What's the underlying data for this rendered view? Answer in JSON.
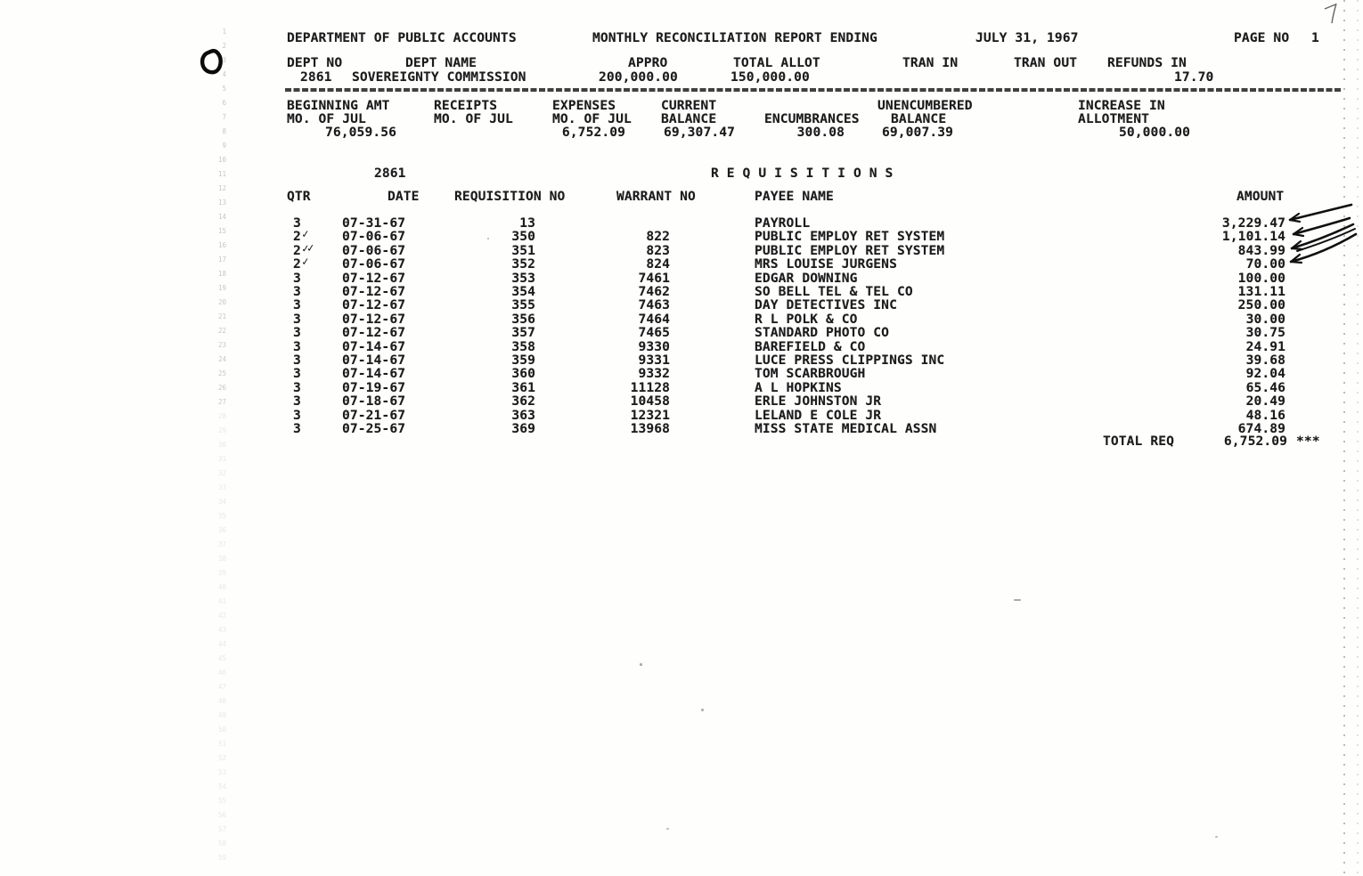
{
  "header": {
    "department": "DEPARTMENT OF PUBLIC ACCOUNTS",
    "report_title": "MONTHLY RECONCILIATION REPORT ENDING",
    "report_date": "JULY 31, 1967",
    "page_label": "PAGE NO",
    "page_number": "1"
  },
  "dept_line": {
    "labels": {
      "dept_no": "DEPT NO",
      "dept_name": "DEPT NAME",
      "appro": "APPRO",
      "total_allot": "TOTAL ALLOT",
      "tran_in": "TRAN IN",
      "tran_out": "TRAN OUT",
      "refunds_in": "REFUNDS IN"
    },
    "values": {
      "dept_no": "2861",
      "dept_name": "SOVEREIGNTY COMMISSION",
      "appro": "200,000.00",
      "total_allot": "150,000.00",
      "tran_in": "",
      "tran_out": "",
      "refunds_in": "17.70"
    }
  },
  "summary": {
    "cols": [
      {
        "line1": "BEGINNING AMT",
        "line2": "MO. OF JUL",
        "value": "76,059.56"
      },
      {
        "line1": "RECEIPTS",
        "line2": "MO. OF JUL",
        "value": ""
      },
      {
        "line1": "EXPENSES",
        "line2": "MO. OF JUL",
        "value": "6,752.09"
      },
      {
        "line1": "CURRENT",
        "line2": "BALANCE",
        "value": "69,307.47"
      },
      {
        "line1": "",
        "line2": "ENCUMBRANCES",
        "value": "300.08"
      },
      {
        "line1": "UNENCUMBERED",
        "line2": "BALANCE",
        "value": "69,007.39"
      },
      {
        "line1": "INCREASE IN",
        "line2": "ALLOTMENT",
        "value": "50,000.00"
      }
    ]
  },
  "requisitions": {
    "section_dept": "2861",
    "section_title": "R E Q U I S I T I O N S",
    "columns": [
      "QTR",
      "DATE",
      "REQUISITION NO",
      "WARRANT NO",
      "PAYEE NAME",
      "AMOUNT"
    ],
    "rows": [
      {
        "qtr": "3",
        "date": "07-31-67",
        "req_no": "13",
        "warrant_no": "",
        "payee": "PAYROLL",
        "amount": "3,229.47"
      },
      {
        "qtr": "2",
        "date": "07-06-67",
        "req_no": "350",
        "warrant_no": "822",
        "payee": "PUBLIC EMPLOY RET SYSTEM",
        "amount": "1,101.14"
      },
      {
        "qtr": "2",
        "date": "07-06-67",
        "req_no": "351",
        "warrant_no": "823",
        "payee": "PUBLIC EMPLOY RET SYSTEM",
        "amount": "843.99"
      },
      {
        "qtr": "2",
        "date": "07-06-67",
        "req_no": "352",
        "warrant_no": "824",
        "payee": "MRS LOUISE JURGENS",
        "amount": "70.00"
      },
      {
        "qtr": "3",
        "date": "07-12-67",
        "req_no": "353",
        "warrant_no": "7461",
        "payee": "EDGAR DOWNING",
        "amount": "100.00"
      },
      {
        "qtr": "3",
        "date": "07-12-67",
        "req_no": "354",
        "warrant_no": "7462",
        "payee": "SO BELL TEL & TEL CO",
        "amount": "131.11"
      },
      {
        "qtr": "3",
        "date": "07-12-67",
        "req_no": "355",
        "warrant_no": "7463",
        "payee": "DAY DETECTIVES INC",
        "amount": "250.00"
      },
      {
        "qtr": "3",
        "date": "07-12-67",
        "req_no": "356",
        "warrant_no": "7464",
        "payee": "R L POLK & CO",
        "amount": "30.00"
      },
      {
        "qtr": "3",
        "date": "07-12-67",
        "req_no": "357",
        "warrant_no": "7465",
        "payee": "STANDARD PHOTO CO",
        "amount": "30.75"
      },
      {
        "qtr": "3",
        "date": "07-14-67",
        "req_no": "358",
        "warrant_no": "9330",
        "payee": "BAREFIELD & CO",
        "amount": "24.91"
      },
      {
        "qtr": "3",
        "date": "07-14-67",
        "req_no": "359",
        "warrant_no": "9331",
        "payee": "LUCE PRESS CLIPPINGS INC",
        "amount": "39.68"
      },
      {
        "qtr": "3",
        "date": "07-14-67",
        "req_no": "360",
        "warrant_no": "9332",
        "payee": "TOM SCARBROUGH",
        "amount": "92.04"
      },
      {
        "qtr": "3",
        "date": "07-19-67",
        "req_no": "361",
        "warrant_no": "11128",
        "payee": "A L HOPKINS",
        "amount": "65.46"
      },
      {
        "qtr": "3",
        "date": "07-18-67",
        "req_no": "362",
        "warrant_no": "10458",
        "payee": "ERLE JOHNSTON JR",
        "amount": "20.49"
      },
      {
        "qtr": "3",
        "date": "07-21-67",
        "req_no": "363",
        "warrant_no": "12321",
        "payee": "LELAND E COLE JR",
        "amount": "48.16"
      },
      {
        "qtr": "3",
        "date": "07-25-67",
        "req_no": "369",
        "warrant_no": "13968",
        "payee": "MISS STATE MEDICAL ASSN",
        "amount": "674.89"
      }
    ],
    "total": {
      "label": "TOTAL REQ",
      "amount": "6,752.09",
      "marker": "***"
    }
  },
  "annotations": {
    "check_glyph": "✓",
    "checked_row_indices": [
      1,
      2,
      3
    ],
    "double_check_row_index": 2,
    "arrow_row_indices": [
      0,
      1,
      2,
      3
    ],
    "margin_mark": "O"
  },
  "margin_numbers": {
    "start": 1,
    "end": 59
  },
  "colors": {
    "ink": "#1c1c1c",
    "paper": "#fefefd"
  }
}
